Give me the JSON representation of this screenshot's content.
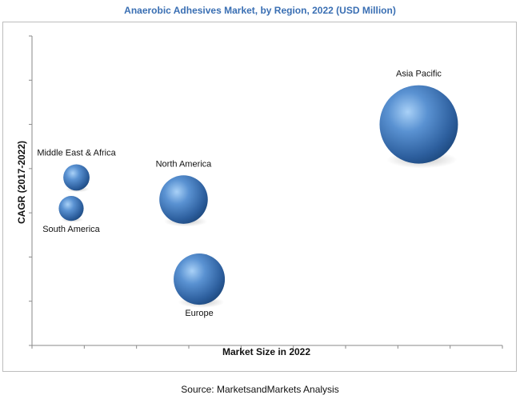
{
  "chart_data": {
    "type": "scatter",
    "title": "Anaerobic Adhesives Market, by Region, 2022 (USD Million)",
    "xlabel": "Market Size in 2022",
    "ylabel": "CAGR (2017-2022)",
    "grid": false,
    "x_ticks_labeled": false,
    "y_ticks_labeled": false,
    "bubble_color": "#3f76b8",
    "points": [
      {
        "label": "Middle East & Africa",
        "x": 0.85,
        "y": 3.8,
        "size": 1.0
      },
      {
        "label": "South America",
        "x": 0.75,
        "y": 3.1,
        "size": 0.9
      },
      {
        "label": "North America",
        "x": 2.9,
        "y": 3.3,
        "size": 3.4
      },
      {
        "label": "Europe",
        "x": 3.2,
        "y": 1.5,
        "size": 3.8
      },
      {
        "label": "Asia Pacific",
        "x": 7.4,
        "y": 5.0,
        "size": 8.9
      }
    ],
    "xlim": [
      0,
      9
    ],
    "ylim": [
      0,
      7
    ]
  },
  "footer": {
    "source": "Source: MarketsandMarkets Analysis"
  }
}
